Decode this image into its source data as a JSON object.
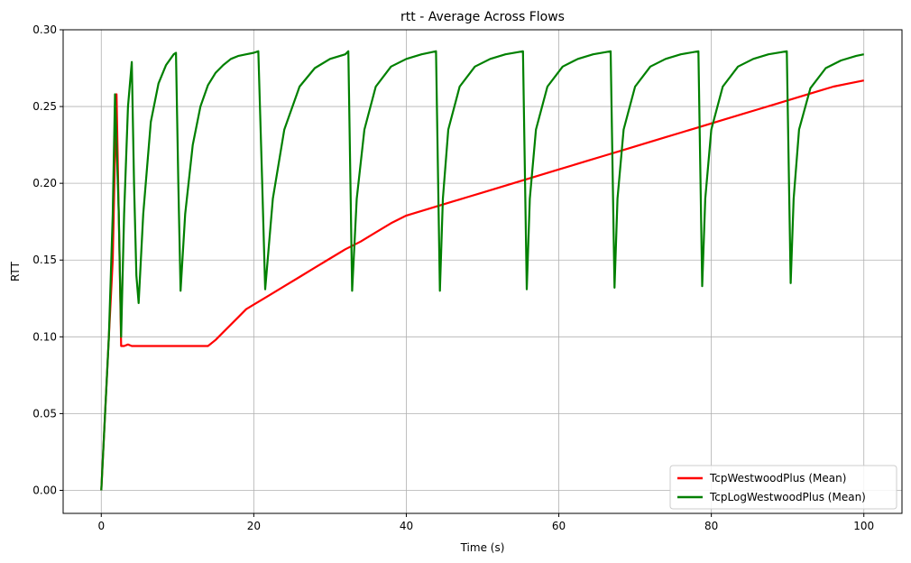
{
  "chart_data": {
    "type": "line",
    "title": "rtt - Average Across Flows",
    "xlabel": "Time (s)",
    "ylabel": "RTT",
    "xlim": [
      -5,
      105
    ],
    "ylim": [
      -0.015,
      0.3
    ],
    "x_ticks": [
      0,
      20,
      40,
      60,
      80,
      100
    ],
    "y_ticks": [
      0.0,
      0.05,
      0.1,
      0.15,
      0.2,
      0.25,
      0.3
    ],
    "x_tick_labels": [
      "0",
      "20",
      "40",
      "60",
      "80",
      "100"
    ],
    "y_tick_labels": [
      "0.00",
      "0.05",
      "0.10",
      "0.15",
      "0.20",
      "0.25",
      "0.30"
    ],
    "grid": true,
    "legend_position": "bottom-right",
    "series": [
      {
        "name": "TcpWestwoodPlus (Mean)",
        "color": "#ff0000",
        "x": [
          0,
          0.5,
          1,
          1.5,
          1.8,
          2,
          2.4,
          2.6,
          3,
          3.5,
          4,
          5,
          6,
          7,
          8,
          9,
          10,
          11,
          12,
          13,
          14,
          15,
          16,
          17,
          18,
          19,
          20,
          22,
          24,
          26,
          28,
          30,
          32,
          34,
          36,
          38,
          40,
          42,
          44,
          46,
          48,
          50,
          52,
          54,
          56,
          58,
          60,
          62,
          64,
          66,
          68,
          70,
          72,
          74,
          76,
          78,
          80,
          82,
          84,
          86,
          88,
          90,
          92,
          94,
          96,
          98,
          100
        ],
        "values": [
          0.0,
          0.05,
          0.1,
          0.15,
          0.22,
          0.258,
          0.15,
          0.094,
          0.094,
          0.095,
          0.094,
          0.094,
          0.094,
          0.094,
          0.094,
          0.094,
          0.094,
          0.094,
          0.094,
          0.094,
          0.094,
          0.098,
          0.103,
          0.108,
          0.113,
          0.118,
          0.121,
          0.127,
          0.133,
          0.139,
          0.145,
          0.151,
          0.157,
          0.162,
          0.168,
          0.174,
          0.179,
          0.182,
          0.185,
          0.188,
          0.191,
          0.194,
          0.197,
          0.2,
          0.203,
          0.206,
          0.209,
          0.212,
          0.215,
          0.218,
          0.221,
          0.224,
          0.227,
          0.23,
          0.233,
          0.236,
          0.239,
          0.242,
          0.245,
          0.248,
          0.251,
          0.254,
          0.257,
          0.26,
          0.263,
          0.265,
          0.267
        ]
      },
      {
        "name": "TcpLogWestwoodPlus (Mean)",
        "color": "#008000",
        "x": [
          0,
          0.5,
          1,
          1.5,
          1.8,
          2.3,
          2.6,
          3.0,
          3.5,
          4.0,
          4.3,
          4.6,
          4.9,
          5.5,
          6.5,
          7.5,
          8.5,
          9.5,
          9.8,
          10.1,
          10.4,
          11,
          12,
          13,
          14,
          15,
          16,
          17,
          18,
          19,
          20,
          20.6,
          21.1,
          21.5,
          22.5,
          24,
          26,
          28,
          30,
          32,
          32.4,
          32.9,
          33.5,
          34.5,
          36,
          38,
          40,
          42,
          43.9,
          44.4,
          44.8,
          45.5,
          47,
          49,
          51,
          53,
          55.3,
          55.8,
          56.2,
          57,
          58.5,
          60.5,
          62.5,
          64.5,
          66.8,
          67.3,
          67.7,
          68.5,
          70,
          72,
          74,
          76,
          78.3,
          78.8,
          79.2,
          80,
          81.5,
          83.5,
          85.5,
          87.5,
          89.9,
          90.4,
          90.8,
          91.5,
          93,
          95,
          97,
          99,
          100
        ],
        "values": [
          0.0,
          0.05,
          0.1,
          0.18,
          0.258,
          0.18,
          0.1,
          0.18,
          0.25,
          0.279,
          0.2,
          0.14,
          0.122,
          0.18,
          0.24,
          0.265,
          0.277,
          0.284,
          0.285,
          0.2,
          0.13,
          0.18,
          0.225,
          0.25,
          0.264,
          0.272,
          0.277,
          0.281,
          0.283,
          0.284,
          0.285,
          0.286,
          0.2,
          0.131,
          0.19,
          0.235,
          0.263,
          0.275,
          0.281,
          0.284,
          0.286,
          0.13,
          0.19,
          0.235,
          0.263,
          0.276,
          0.281,
          0.284,
          0.286,
          0.13,
          0.19,
          0.235,
          0.263,
          0.276,
          0.281,
          0.284,
          0.286,
          0.131,
          0.19,
          0.235,
          0.263,
          0.276,
          0.281,
          0.284,
          0.286,
          0.132,
          0.19,
          0.235,
          0.263,
          0.276,
          0.281,
          0.284,
          0.286,
          0.133,
          0.19,
          0.235,
          0.263,
          0.276,
          0.281,
          0.284,
          0.286,
          0.135,
          0.19,
          0.235,
          0.262,
          0.275,
          0.28,
          0.283,
          0.284
        ]
      }
    ]
  }
}
